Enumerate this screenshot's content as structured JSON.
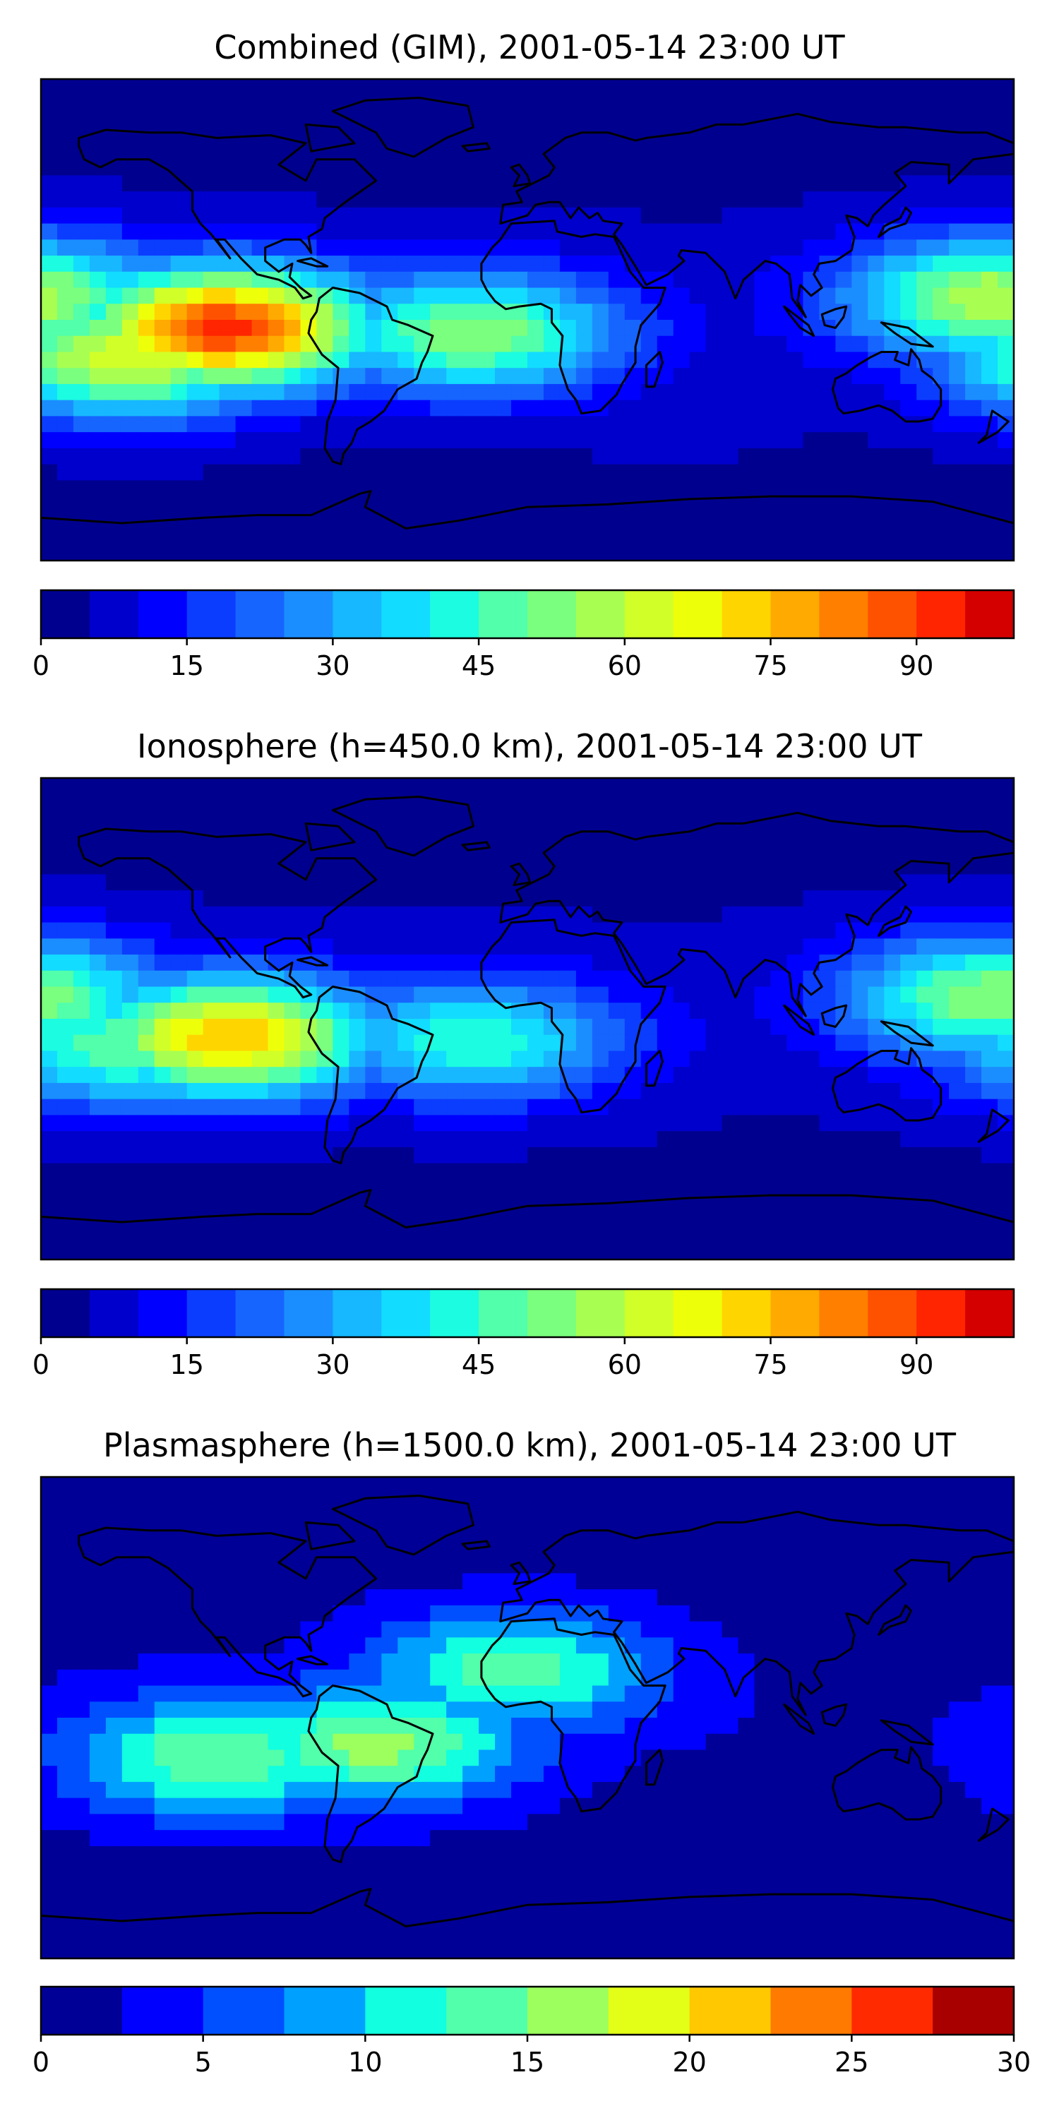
{
  "chart_data": [
    {
      "type": "heatmap",
      "title": "Combined (GIM), 2001-05-14 23:00 UT",
      "map_projection": "equirectangular, global, coastlines",
      "levels": [
        0,
        5,
        10,
        15,
        20,
        25,
        30,
        35,
        40,
        45,
        50,
        55,
        60,
        65,
        70,
        75,
        80,
        85,
        90,
        95,
        100
      ],
      "colorbar_ticks": [
        0,
        15,
        30,
        45,
        60,
        75,
        90
      ],
      "range": [
        0,
        100
      ],
      "colormap": "jet",
      "colors": [
        "#00008f",
        "#0000cc",
        "#0000ff",
        "#0b3dff",
        "#1765ff",
        "#1b8eff",
        "#17b8ff",
        "#12dcff",
        "#1cfce0",
        "#52ffaa",
        "#7bff7e",
        "#a8ff52",
        "#d1ff28",
        "#eeff0a",
        "#ffd500",
        "#ffaa00",
        "#ff7f00",
        "#ff5200",
        "#ff2500",
        "#d40000",
        "#8f0000"
      ],
      "peak_value": 92,
      "features": [
        {
          "region": "eastern Pacific equatorial crest",
          "lon": -112,
          "lat": -3,
          "value": 92
        },
        {
          "region": "eastern Pacific (south)",
          "lon": -148,
          "lat": -14,
          "value": 65
        },
        {
          "region": "South America / South Atlantic",
          "lon": -20,
          "lat": -5,
          "value": 55
        },
        {
          "region": "western Pacific",
          "lon": 172,
          "lat": 8,
          "value": 60
        },
        {
          "region": "South Indian Ocean",
          "lon": 50,
          "lat": -30,
          "value": 7
        }
      ]
    },
    {
      "type": "heatmap",
      "title": "Ionosphere  (h=450.0 km), 2001-05-14 23:00 UT",
      "map_projection": "equirectangular, global, coastlines",
      "levels": [
        0,
        5,
        10,
        15,
        20,
        25,
        30,
        35,
        40,
        45,
        50,
        55,
        60,
        65,
        70,
        75,
        80,
        85,
        90,
        95,
        100
      ],
      "colorbar_ticks": [
        0,
        15,
        30,
        45,
        60,
        75,
        90
      ],
      "range": [
        0,
        100
      ],
      "colormap": "jet",
      "colors": [
        "#00008f",
        "#0000cc",
        "#0000ff",
        "#0b3dff",
        "#1765ff",
        "#1b8eff",
        "#17b8ff",
        "#12dcff",
        "#1cfce0",
        "#52ffaa",
        "#7bff7e",
        "#a8ff52",
        "#d1ff28",
        "#eeff0a",
        "#ffd500",
        "#ffaa00",
        "#ff7f00",
        "#ff5200",
        "#ff2500",
        "#d40000",
        "#8f0000"
      ],
      "peak_value": 75,
      "features": [
        {
          "region": "eastern Pacific equatorial crest",
          "lon": -110,
          "lat": -7,
          "value": 75
        },
        {
          "region": "eastern Pacific (south)",
          "lon": -150,
          "lat": -10,
          "value": 50
        },
        {
          "region": "South America / South Atlantic",
          "lon": -20,
          "lat": -8,
          "value": 45
        },
        {
          "region": "western Pacific",
          "lon": 172,
          "lat": 8,
          "value": 55
        },
        {
          "region": "Indian Ocean",
          "lon": 60,
          "lat": -25,
          "value": 3
        }
      ]
    },
    {
      "type": "heatmap",
      "title": "Plasmasphere (h=1500.0 km), 2001-05-14 23:00 UT",
      "map_projection": "equirectangular, global, coastlines",
      "levels": [
        0,
        2.5,
        5,
        7.5,
        10,
        12.5,
        15,
        17.5,
        20,
        22.5,
        25,
        27.5,
        30
      ],
      "colorbar_ticks": [
        0,
        5,
        10,
        15,
        20,
        25,
        30
      ],
      "range": [
        0,
        30
      ],
      "colormap": "jet",
      "colors": [
        "#000096",
        "#0000ff",
        "#0050ff",
        "#00a0ff",
        "#12ffe0",
        "#52ffaa",
        "#9cff5e",
        "#e3ff17",
        "#ffc800",
        "#ff7a00",
        "#ff2a00",
        "#a80000"
      ],
      "peak_value": 17,
      "features": [
        {
          "region": "South America",
          "lon": -55,
          "lat": -10,
          "value": 16
        },
        {
          "region": "eastern Pacific (south)",
          "lon": -115,
          "lat": -15,
          "value": 15
        },
        {
          "region": "North Africa / Atlantic",
          "lon": -5,
          "lat": 18,
          "value": 14
        },
        {
          "region": "Australia",
          "lon": 135,
          "lat": -25,
          "value": 2
        }
      ]
    }
  ]
}
